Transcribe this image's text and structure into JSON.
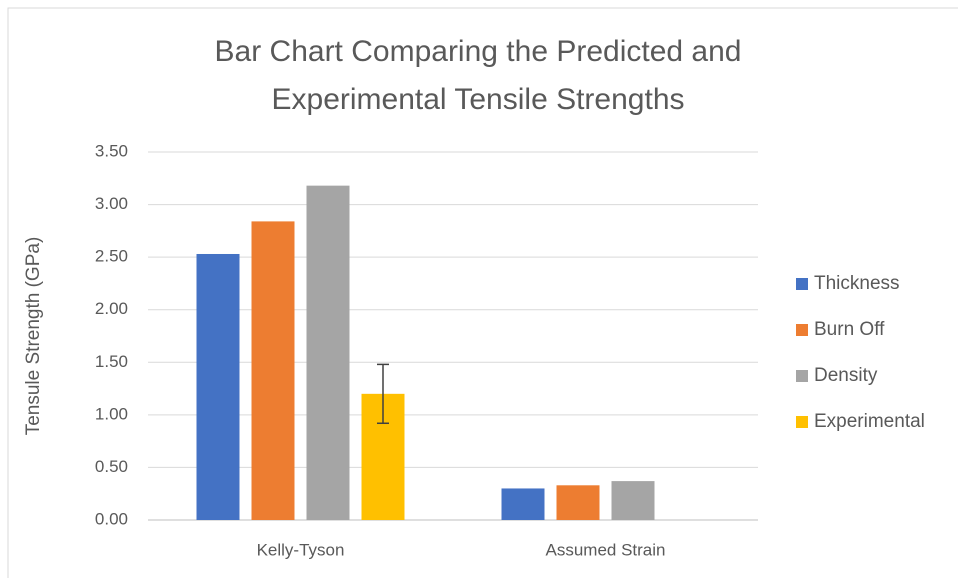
{
  "chart_data": {
    "type": "bar",
    "title": "Bar Chart Comparing the Predicted and Experimental Tensile Strengths",
    "y_label": "Tensule Strength (GPa)",
    "categories": [
      "Kelly-Tyson",
      "Assumed Strain"
    ],
    "series": [
      {
        "name": "Thickness",
        "color": "#4472c4",
        "values": [
          2.53,
          0.3
        ]
      },
      {
        "name": "Burn Off",
        "color": "#ed7d31",
        "values": [
          2.84,
          0.33
        ]
      },
      {
        "name": "Density",
        "color": "#a5a5a5",
        "values": [
          3.18,
          0.37
        ]
      },
      {
        "name": "Experimental",
        "color": "#ffc000",
        "values": [
          1.2,
          null
        ],
        "errors": [
          0.28,
          null
        ]
      }
    ],
    "ylim": [
      0,
      3.5
    ],
    "yticks": [
      {
        "value": 0,
        "label": "0.00"
      },
      {
        "value": 0.5,
        "label": "0.50"
      },
      {
        "value": 1,
        "label": "1.00"
      },
      {
        "value": 1.5,
        "label": "1.50"
      },
      {
        "value": 2,
        "label": "2.00"
      },
      {
        "value": 2.5,
        "label": "2.50"
      },
      {
        "value": 3,
        "label": "3.00"
      },
      {
        "value": 3.5,
        "label": "3.50"
      }
    ],
    "grid": true,
    "legend": "right"
  }
}
